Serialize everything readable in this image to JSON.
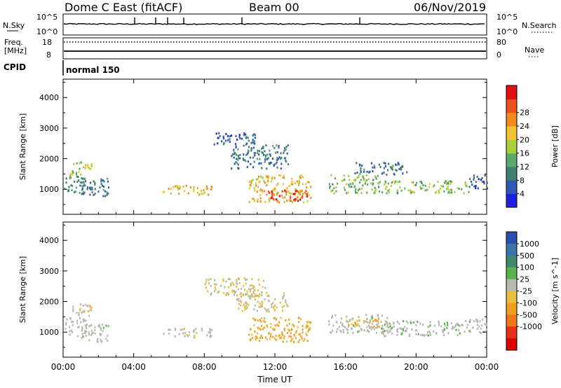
{
  "header": {
    "site": "Dome C East (fitACF)",
    "beam": "Beam 00",
    "date": "06/Nov/2019",
    "cpid_label": "CPID",
    "cpid_value": "normal 150"
  },
  "noise_panel": {
    "left_label": "N.Sky",
    "right_label": "N.Search",
    "ytick_top": "10^5",
    "ytick_bottom": "10^0"
  },
  "freq_panel": {
    "left_label_1": "Freq.",
    "left_label_2": "[MHz]",
    "right_label": "Nave",
    "left_ticks": [
      "18",
      "8"
    ],
    "right_ticks": [
      "80",
      "0"
    ]
  },
  "colors": {
    "power_scale": [
      "#1f1fe0",
      "#2d58b8",
      "#3f7f6e",
      "#5aa86a",
      "#a6cf3a",
      "#f2c230",
      "#f28a1e",
      "#ef4f1a",
      "#e21010"
    ],
    "velocity_scale": [
      "#2a4fb0",
      "#3a74a8",
      "#3f8a6a",
      "#5ab04a",
      "#b8b8b0",
      "#e8c040",
      "#f0a020",
      "#f07818",
      "#e83018",
      "#e00000"
    ]
  },
  "chart_data": [
    {
      "type": "heatmap",
      "title": "",
      "xlabel": "Time UT",
      "ylabel": "Slant Range [km]",
      "xticks": [
        "00:00",
        "04:00",
        "08:00",
        "12:00",
        "16:00",
        "20:00",
        "00:00"
      ],
      "yticks": [
        "1000",
        "2000",
        "3000",
        "4000"
      ],
      "xlim": [
        0,
        24
      ],
      "ylim": [
        180,
        4600
      ],
      "colorbar": {
        "label": "Power [dB]",
        "ticks": [
          "4",
          "8",
          "12",
          "16",
          "20",
          "24",
          "28"
        ],
        "range": [
          0,
          32
        ]
      },
      "patches": [
        {
          "t0": 0.0,
          "t1": 1.2,
          "r0": 900,
          "r1": 1500,
          "value": 10
        },
        {
          "t0": 0.4,
          "t1": 1.6,
          "r0": 1500,
          "r1": 1950,
          "value": 16
        },
        {
          "t0": 1.0,
          "t1": 2.6,
          "r0": 800,
          "r1": 1400,
          "value": 8
        },
        {
          "t0": 5.6,
          "t1": 8.4,
          "r0": 850,
          "r1": 1150,
          "value": 20
        },
        {
          "t0": 8.5,
          "t1": 11.0,
          "r0": 2500,
          "r1": 2900,
          "value": 6
        },
        {
          "t0": 9.5,
          "t1": 12.8,
          "r0": 1700,
          "r1": 2500,
          "value": 8
        },
        {
          "t0": 10.5,
          "t1": 14.0,
          "r0": 600,
          "r1": 1500,
          "value": 20
        },
        {
          "t0": 11.5,
          "t1": 13.8,
          "r0": 650,
          "r1": 1000,
          "value": 28
        },
        {
          "t0": 15.0,
          "t1": 18.0,
          "r0": 900,
          "r1": 1500,
          "value": 14
        },
        {
          "t0": 16.5,
          "t1": 19.5,
          "r0": 1500,
          "r1": 1900,
          "value": 8
        },
        {
          "t0": 18.0,
          "t1": 23.0,
          "r0": 900,
          "r1": 1300,
          "value": 14
        },
        {
          "t0": 23.0,
          "t1": 24.0,
          "r0": 1000,
          "r1": 1500,
          "value": 6
        }
      ]
    },
    {
      "type": "heatmap",
      "title": "",
      "xlabel": "Time UT",
      "ylabel": "Slant Range [km]",
      "xticks": [
        "00:00",
        "04:00",
        "08:00",
        "12:00",
        "16:00",
        "20:00",
        "00:00"
      ],
      "yticks": [
        "1000",
        "2000",
        "3000",
        "4000"
      ],
      "xlim": [
        0,
        24
      ],
      "ylim": [
        180,
        4600
      ],
      "colorbar": {
        "label": "Velocity [m s^-1]",
        "ticks": [
          "1000",
          "500",
          "100",
          "25",
          "-25",
          "-100",
          "-500",
          "-1000"
        ],
        "range": [
          -1200,
          1200
        ]
      },
      "patches": [
        {
          "t0": 0.0,
          "t1": 1.3,
          "r0": 900,
          "r1": 1500,
          "value": 120
        },
        {
          "t0": 0.4,
          "t1": 1.6,
          "r0": 1500,
          "r1": 1950,
          "value": 60
        },
        {
          "t0": 1.0,
          "t1": 2.6,
          "r0": 700,
          "r1": 1300,
          "value": 150
        },
        {
          "t0": 5.6,
          "t1": 8.4,
          "r0": 850,
          "r1": 1150,
          "value": 80
        },
        {
          "t0": 8.0,
          "t1": 11.5,
          "r0": 2200,
          "r1": 2800,
          "value": 0
        },
        {
          "t0": 9.8,
          "t1": 12.8,
          "r0": 1700,
          "r1": 2300,
          "value": -20
        },
        {
          "t0": 10.4,
          "t1": 14.0,
          "r0": 700,
          "r1": 1500,
          "value": -300
        },
        {
          "t0": 15.0,
          "t1": 18.5,
          "r0": 1000,
          "r1": 1600,
          "value": 150
        },
        {
          "t0": 16.0,
          "t1": 18.0,
          "r0": 1200,
          "r1": 1500,
          "value": -200
        },
        {
          "t0": 18.0,
          "t1": 23.0,
          "r0": 900,
          "r1": 1400,
          "value": 200
        },
        {
          "t0": 23.0,
          "t1": 24.0,
          "r0": 1000,
          "r1": 1500,
          "value": 120
        }
      ]
    }
  ]
}
